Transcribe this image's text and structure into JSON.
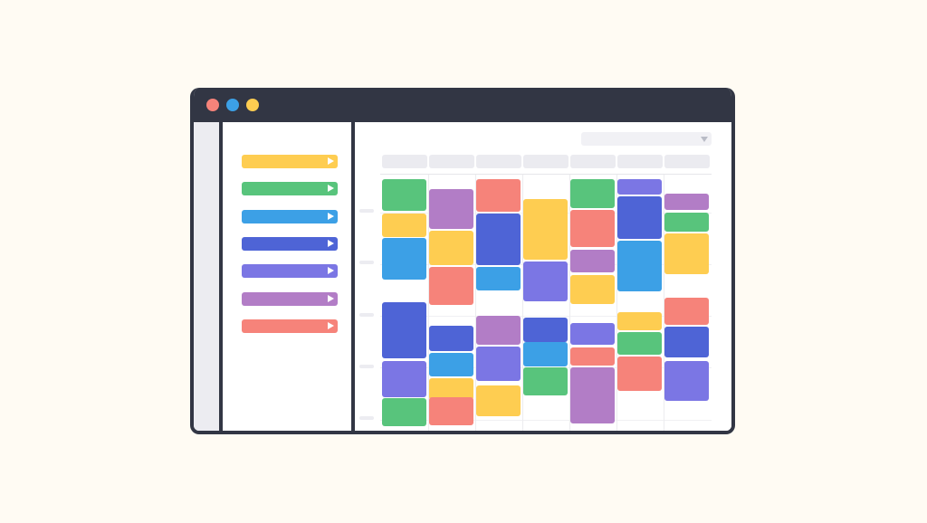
{
  "colors": {
    "background": "#fffbf3",
    "frame": "#323644",
    "yellow": "#fecd51",
    "green": "#58c47c",
    "blue": "#3ca0e6",
    "indigo": "#4e64d6",
    "violet": "#7b76e4",
    "purple": "#b27dc6",
    "coral": "#f6837a"
  },
  "window": {
    "controls": [
      {
        "name": "close",
        "color": "#f6837a"
      },
      {
        "name": "minimize",
        "color": "#3ca0e6"
      },
      {
        "name": "maximize",
        "color": "#fecd51"
      }
    ]
  },
  "sidebar": {
    "calendars": [
      {
        "color": "yellow",
        "icon": "play-icon"
      },
      {
        "color": "green",
        "icon": "play-icon"
      },
      {
        "color": "blue",
        "icon": "play-icon"
      },
      {
        "color": "indigo",
        "icon": "play-icon"
      },
      {
        "color": "violet",
        "icon": "play-icon"
      },
      {
        "color": "purple",
        "icon": "play-icon"
      },
      {
        "color": "coral",
        "icon": "play-icon"
      }
    ]
  },
  "calendar": {
    "view_selector": {
      "icon": "chevron-down-icon"
    },
    "day_count": 7,
    "columns": [
      [
        "green",
        "yellow",
        "blue",
        "indigo",
        "violet",
        "green"
      ],
      [
        "purple",
        "yellow",
        "coral",
        "indigo",
        "blue",
        "yellow",
        "coral"
      ],
      [
        "coral",
        "indigo",
        "blue",
        "purple",
        "violet",
        "yellow"
      ],
      [
        "yellow",
        "violet",
        "indigo",
        "blue",
        "green"
      ],
      [
        "green",
        "coral",
        "purple",
        "yellow",
        "violet",
        "coral",
        "purple"
      ],
      [
        "violet",
        "indigo",
        "blue",
        "yellow",
        "green",
        "coral"
      ],
      [
        "purple",
        "green",
        "yellow",
        "coral",
        "indigo",
        "violet"
      ]
    ]
  }
}
